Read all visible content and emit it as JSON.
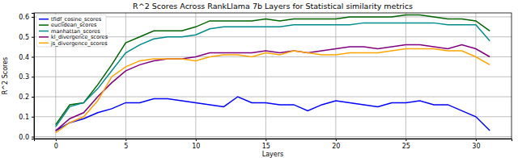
{
  "chart_data": {
    "type": "line",
    "title": "R^2 Scores Across RankLlama 7b Layers for Statistical similarity metrics",
    "x_label": "Layers",
    "y_label": "R^2 Scores",
    "x": [
      0,
      1,
      2,
      3,
      4,
      5,
      6,
      7,
      8,
      9,
      10,
      11,
      12,
      13,
      14,
      15,
      16,
      17,
      18,
      19,
      20,
      21,
      22,
      23,
      24,
      25,
      26,
      27,
      28,
      29,
      30,
      31
    ],
    "series": [
      {
        "name": "tfidf_cosine_scores",
        "color": "#0000ff",
        "values": [
          0.03,
          0.07,
          0.09,
          0.12,
          0.14,
          0.17,
          0.17,
          0.19,
          0.19,
          0.18,
          0.17,
          0.16,
          0.15,
          0.2,
          0.17,
          0.17,
          0.16,
          0.16,
          0.13,
          0.16,
          0.18,
          0.17,
          0.16,
          0.15,
          0.17,
          0.17,
          0.18,
          0.16,
          0.16,
          0.13,
          0.1,
          0.03
        ]
      },
      {
        "name": "euclidean_scores",
        "color": "#006400",
        "values": [
          0.06,
          0.16,
          0.17,
          0.26,
          0.36,
          0.47,
          0.5,
          0.53,
          0.53,
          0.53,
          0.55,
          0.58,
          0.58,
          0.58,
          0.58,
          0.59,
          0.58,
          0.59,
          0.59,
          0.59,
          0.59,
          0.6,
          0.6,
          0.6,
          0.6,
          0.61,
          0.61,
          0.6,
          0.59,
          0.59,
          0.58,
          0.53
        ]
      },
      {
        "name": "manhattan_scores",
        "color": "#008b8b",
        "values": [
          0.05,
          0.15,
          0.17,
          0.24,
          0.33,
          0.42,
          0.46,
          0.49,
          0.5,
          0.5,
          0.51,
          0.54,
          0.55,
          0.55,
          0.55,
          0.55,
          0.55,
          0.56,
          0.56,
          0.56,
          0.56,
          0.56,
          0.57,
          0.57,
          0.57,
          0.57,
          0.57,
          0.57,
          0.56,
          0.56,
          0.56,
          0.48
        ]
      },
      {
        "name": "kl_divergence_scores",
        "color": "#800080",
        "values": [
          0.03,
          0.09,
          0.12,
          0.2,
          0.27,
          0.33,
          0.36,
          0.38,
          0.39,
          0.39,
          0.4,
          0.42,
          0.42,
          0.42,
          0.42,
          0.43,
          0.42,
          0.43,
          0.42,
          0.43,
          0.44,
          0.45,
          0.45,
          0.44,
          0.45,
          0.46,
          0.46,
          0.45,
          0.44,
          0.46,
          0.44,
          0.4
        ]
      },
      {
        "name": "js_divergence_scores",
        "color": "#ffa500",
        "values": [
          0.02,
          0.07,
          0.1,
          0.18,
          0.3,
          0.35,
          0.38,
          0.39,
          0.39,
          0.39,
          0.38,
          0.4,
          0.41,
          0.41,
          0.4,
          0.42,
          0.41,
          0.43,
          0.42,
          0.41,
          0.41,
          0.42,
          0.42,
          0.42,
          0.43,
          0.44,
          0.44,
          0.44,
          0.43,
          0.43,
          0.4,
          0.36
        ]
      }
    ],
    "xlim": [
      -1.55,
      32.55
    ],
    "ylim": [
      -0.01,
      0.62
    ],
    "xticks": [
      0,
      5,
      10,
      15,
      20,
      25,
      30
    ],
    "yticks": [
      {
        "value": 0,
        "label": "0.0"
      },
      0.1,
      0.2,
      0.3,
      0.4,
      0.5,
      0.6
    ],
    "grid": true,
    "legend": "upper left"
  }
}
